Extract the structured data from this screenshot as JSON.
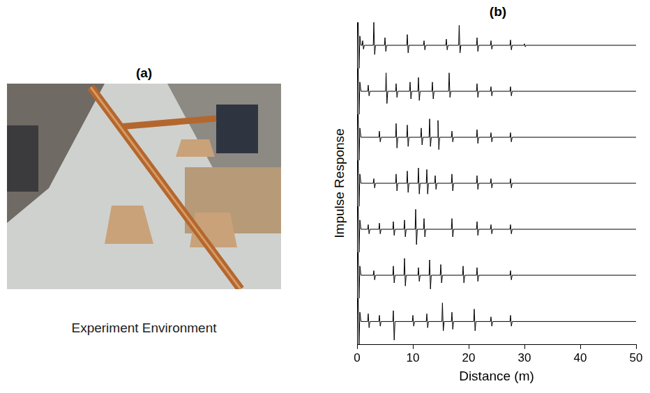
{
  "panel_a": {
    "label": "(a)",
    "caption": "Experiment Environment"
  },
  "chart_data": {
    "type": "line",
    "title": "(b)",
    "x_label": "Distance (m)",
    "y_label": "Impulse Response",
    "xlim": [
      0,
      50
    ],
    "xticks": [
      0,
      10,
      20,
      30,
      40,
      50
    ],
    "ylim": [
      -1.5,
      1.5
    ],
    "tick_labels": "x",
    "grid": false,
    "series": [
      {
        "color": "#000000",
        "x": [
          0,
          0.2,
          0.35,
          0.5,
          0.7,
          0.9,
          1,
          1.15,
          1.3,
          2.9,
          3,
          3.15,
          3.3,
          4.9,
          5,
          5.15,
          5.3,
          8.9,
          9,
          9.15,
          9.3,
          11.9,
          12,
          12.15,
          12.3,
          15.9,
          16,
          16.15,
          16.3,
          18.2,
          18.3,
          18.45,
          18.6,
          21.4,
          21.5,
          21.65,
          21.8,
          23.9,
          24,
          24.15,
          24.3,
          27.4,
          27.5,
          27.65,
          27.8,
          29.9,
          30,
          30.15,
          30.3,
          50
        ],
        "values": [
          0,
          1.5,
          -1.5,
          0.6,
          0,
          0,
          0.3,
          -0.25,
          0,
          0,
          1.5,
          -0.6,
          0,
          0,
          0.5,
          -0.4,
          0,
          0,
          0.7,
          -0.5,
          0,
          0,
          0.3,
          -0.3,
          0,
          0,
          0.4,
          -0.3,
          0,
          0,
          1.3,
          -0.5,
          0,
          0,
          0.5,
          -0.4,
          0,
          0,
          0.3,
          -0.25,
          0,
          0,
          0.35,
          -0.3,
          0,
          0,
          0.1,
          -0.1,
          0,
          0
        ]
      },
      {
        "color": "#000000",
        "x": [
          0,
          0.2,
          0.35,
          0.5,
          0.7,
          1.9,
          2,
          2.15,
          2.3,
          5.1,
          5.2,
          5.35,
          5.5,
          6.9,
          7,
          7.15,
          7.3,
          9.4,
          9.5,
          9.65,
          9.8,
          10.9,
          11,
          11.15,
          11.3,
          13.4,
          13.5,
          13.65,
          13.8,
          16.4,
          16.5,
          16.65,
          16.8,
          21.4,
          21.5,
          21.65,
          21.8,
          23.9,
          24,
          24.15,
          24.3,
          27.4,
          27.5,
          27.65,
          27.8,
          50
        ],
        "values": [
          0,
          1.5,
          -1.5,
          0.6,
          0,
          0,
          0.4,
          -0.3,
          0,
          0,
          1.2,
          -0.8,
          0,
          0,
          0.5,
          -0.4,
          0,
          0,
          0.6,
          -0.5,
          0,
          0,
          0.9,
          -0.6,
          0,
          0,
          0.6,
          -0.5,
          0,
          0,
          1.2,
          -0.4,
          0,
          0,
          0.5,
          -0.4,
          0,
          0,
          0.3,
          -0.3,
          0,
          0,
          0.3,
          -0.3,
          0,
          0
        ]
      },
      {
        "color": "#000000",
        "x": [
          0,
          0.2,
          0.35,
          0.5,
          0.7,
          3.9,
          4,
          4.15,
          4.3,
          6.9,
          7,
          7.15,
          7.3,
          8.9,
          9,
          9.15,
          9.3,
          11.4,
          11.5,
          11.65,
          11.8,
          12.9,
          13,
          13.15,
          13.3,
          14.4,
          14.5,
          14.65,
          14.8,
          16.9,
          17,
          17.15,
          17.3,
          21.4,
          21.5,
          21.65,
          21.8,
          23.9,
          24,
          24.15,
          24.3,
          27.4,
          27.5,
          27.65,
          27.8,
          50
        ],
        "values": [
          0,
          1.5,
          -1.5,
          0.6,
          0,
          0,
          0.4,
          -0.3,
          0,
          0,
          0.9,
          -0.7,
          0,
          0,
          0.8,
          -0.6,
          0,
          0,
          0.6,
          -0.5,
          0,
          0,
          1.2,
          -0.6,
          0,
          0,
          1.1,
          -0.8,
          0,
          0,
          0.4,
          -0.3,
          0,
          0,
          0.5,
          -0.4,
          0,
          0,
          0.3,
          -0.3,
          0,
          0,
          0.3,
          -0.3,
          0,
          0
        ]
      },
      {
        "color": "#000000",
        "x": [
          0,
          0.2,
          0.35,
          0.5,
          0.7,
          2.9,
          3,
          3.15,
          3.3,
          6.9,
          7,
          7.15,
          7.3,
          8.9,
          9,
          9.15,
          9.3,
          10.9,
          11,
          11.15,
          11.3,
          12.4,
          12.5,
          12.65,
          12.8,
          13.9,
          14,
          14.15,
          14.3,
          16.9,
          17,
          17.15,
          17.3,
          21.4,
          21.5,
          21.65,
          21.8,
          23.9,
          24,
          24.15,
          24.3,
          27.4,
          27.5,
          27.65,
          27.8,
          50
        ],
        "values": [
          0,
          1.5,
          -1.5,
          0.6,
          0,
          0,
          0.3,
          -0.3,
          0,
          0,
          0.6,
          -0.5,
          0,
          0,
          0.8,
          -0.6,
          0,
          0,
          1,
          -0.7,
          0,
          0,
          0.9,
          -0.7,
          0,
          0,
          0.5,
          -0.4,
          0,
          0,
          0.6,
          -0.5,
          0,
          0,
          0.5,
          -0.4,
          0,
          0,
          0.3,
          -0.3,
          0,
          0,
          0.3,
          -0.3,
          0,
          0
        ]
      },
      {
        "color": "#000000",
        "x": [
          0,
          0.2,
          0.35,
          0.5,
          0.7,
          1.9,
          2,
          2.15,
          2.3,
          3.9,
          4,
          4.15,
          4.3,
          6.4,
          6.5,
          6.65,
          6.8,
          8.4,
          8.5,
          8.65,
          8.8,
          10.4,
          10.5,
          10.65,
          10.8,
          11.9,
          12,
          12.15,
          12.3,
          16.9,
          17,
          17.15,
          17.3,
          21.4,
          21.5,
          21.65,
          21.8,
          23.9,
          24,
          24.15,
          24.3,
          27.4,
          27.5,
          27.65,
          27.8,
          50
        ],
        "values": [
          0,
          1.5,
          -1.5,
          0.6,
          0,
          0,
          0.3,
          -0.3,
          0,
          0,
          0.4,
          -0.3,
          0,
          0,
          0.5,
          -0.4,
          0,
          0,
          0.6,
          -0.5,
          0,
          0,
          1.3,
          -1,
          0,
          0,
          0.7,
          -0.5,
          0,
          0,
          0.7,
          -0.5,
          0,
          0,
          0.5,
          -0.4,
          0,
          0,
          0.3,
          -0.3,
          0,
          0,
          0.3,
          -0.3,
          0,
          0
        ]
      },
      {
        "color": "#000000",
        "x": [
          0,
          0.2,
          0.35,
          0.5,
          0.7,
          2.9,
          3,
          3.15,
          3.3,
          6.4,
          6.5,
          6.65,
          6.8,
          8.4,
          8.5,
          8.65,
          8.8,
          10.9,
          11,
          11.15,
          11.3,
          12.9,
          13,
          13.15,
          13.3,
          14.9,
          15,
          15.15,
          15.3,
          18.9,
          19,
          19.15,
          19.3,
          21.4,
          21.5,
          21.65,
          21.8,
          27.4,
          27.5,
          27.65,
          27.8,
          50
        ],
        "values": [
          0,
          1.5,
          -1.5,
          0.6,
          0,
          0,
          0.3,
          -0.3,
          0,
          0,
          0.6,
          -0.5,
          0,
          0,
          1.1,
          -0.7,
          0,
          0,
          0.5,
          -0.4,
          0,
          0,
          1,
          -0.9,
          0,
          0,
          0.7,
          -0.5,
          0,
          0,
          0.6,
          -0.5,
          0,
          0,
          0.5,
          -0.4,
          0,
          0,
          0.3,
          -0.3,
          0,
          0
        ]
      },
      {
        "color": "#000000",
        "x": [
          0,
          0.2,
          0.35,
          0.5,
          0.7,
          1.9,
          2,
          2.15,
          2.3,
          3.9,
          4,
          4.15,
          4.3,
          6.4,
          6.5,
          6.65,
          6.8,
          9.9,
          10,
          10.15,
          10.3,
          12.4,
          12.5,
          12.65,
          12.8,
          15.2,
          15.3,
          15.45,
          15.6,
          16.9,
          17,
          17.15,
          17.3,
          20.9,
          21,
          21.15,
          21.3,
          23.9,
          24,
          24.15,
          24.3,
          27.4,
          27.5,
          27.65,
          27.8,
          50
        ],
        "values": [
          0,
          1.5,
          -1.5,
          0.6,
          0,
          0,
          0.5,
          -0.4,
          0,
          0,
          0.4,
          -0.3,
          0,
          0,
          0.7,
          -1.2,
          0,
          0,
          0.4,
          -0.3,
          0,
          0,
          0.5,
          -0.4,
          0,
          0,
          1.2,
          -0.6,
          0,
          0,
          0.6,
          -0.5,
          0,
          0,
          0.8,
          -0.6,
          0,
          0,
          0.3,
          -0.3,
          0,
          0,
          0.4,
          -0.3,
          0,
          0
        ]
      }
    ]
  }
}
